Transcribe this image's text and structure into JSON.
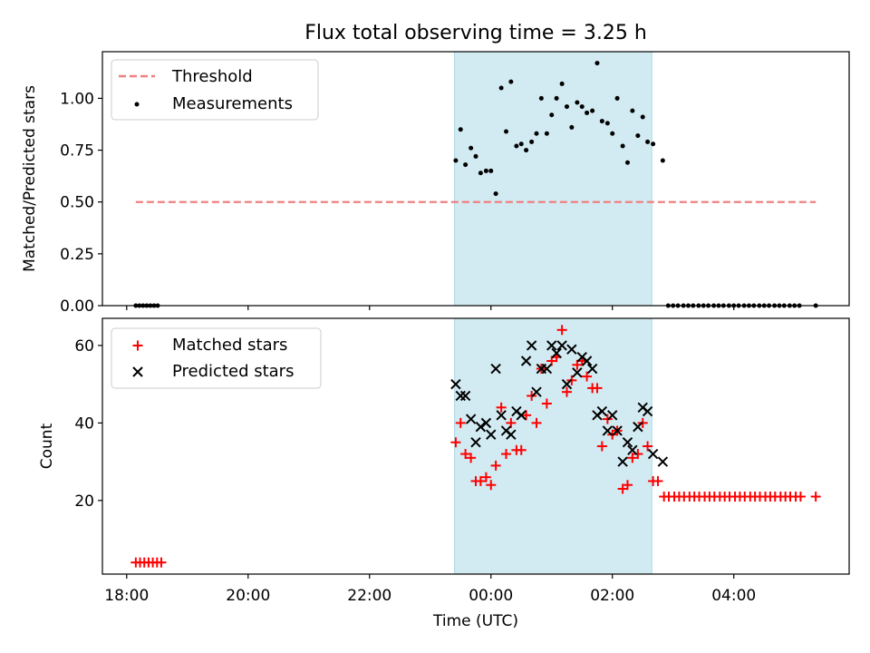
{
  "title": "Flux total observing time = 3.25 h",
  "colors": {
    "threshold": "#f08080",
    "measurement": "#000000",
    "matched": "#ff0000",
    "predicted": "#000000",
    "observing_window": "#add8e6"
  },
  "chart_data": [
    {
      "type": "scatter",
      "panel": "top",
      "ylabel": "Matched/Predicted stars",
      "ylim": [
        0.0,
        1.225
      ],
      "yticks": [
        0.0,
        0.25,
        0.5,
        0.75,
        1.0
      ],
      "ytick_labels": [
        "0.00",
        "0.25",
        "0.50",
        "0.75",
        "1.00"
      ],
      "legend": {
        "location": "upper-left",
        "entries": [
          "Threshold",
          "Measurements"
        ]
      },
      "threshold": {
        "label": "Threshold",
        "value": 0.5,
        "x_range": [
          -5.85,
          5.35
        ]
      },
      "shaded_window_hours": [
        -0.6,
        2.65
      ],
      "series": [
        {
          "name": "Measurements",
          "points": [
            [
              -5.85,
              0
            ],
            [
              -5.79,
              0
            ],
            [
              -5.73,
              0
            ],
            [
              -5.67,
              0
            ],
            [
              -5.61,
              0
            ],
            [
              -5.55,
              0
            ],
            [
              -5.49,
              0
            ],
            [
              -0.58,
              0.7
            ],
            [
              -0.5,
              0.85
            ],
            [
              -0.42,
              0.68
            ],
            [
              -0.33,
              0.76
            ],
            [
              -0.25,
              0.72
            ],
            [
              -0.17,
              0.64
            ],
            [
              -0.08,
              0.65
            ],
            [
              0.0,
              0.65
            ],
            [
              0.08,
              0.54
            ],
            [
              0.17,
              1.05
            ],
            [
              0.25,
              0.84
            ],
            [
              0.33,
              1.08
            ],
            [
              0.42,
              0.77
            ],
            [
              0.5,
              0.78
            ],
            [
              0.58,
              0.75
            ],
            [
              0.67,
              0.79
            ],
            [
              0.75,
              0.83
            ],
            [
              0.83,
              1.0
            ],
            [
              0.92,
              0.83
            ],
            [
              1.0,
              0.92
            ],
            [
              1.08,
              1.0
            ],
            [
              1.17,
              1.07
            ],
            [
              1.25,
              0.96
            ],
            [
              1.33,
              0.86
            ],
            [
              1.42,
              0.98
            ],
            [
              1.5,
              0.96
            ],
            [
              1.58,
              0.93
            ],
            [
              1.67,
              0.94
            ],
            [
              1.75,
              1.17
            ],
            [
              1.83,
              0.89
            ],
            [
              1.92,
              0.88
            ],
            [
              2.0,
              0.83
            ],
            [
              2.08,
              1.0
            ],
            [
              2.17,
              0.77
            ],
            [
              2.25,
              0.69
            ],
            [
              2.33,
              0.94
            ],
            [
              2.42,
              0.82
            ],
            [
              2.5,
              0.91
            ],
            [
              2.58,
              0.79
            ],
            [
              2.67,
              0.78
            ],
            [
              2.83,
              0.7
            ],
            [
              2.92,
              0
            ],
            [
              3.0,
              0
            ],
            [
              3.08,
              0
            ],
            [
              3.17,
              0
            ],
            [
              3.25,
              0
            ],
            [
              3.33,
              0
            ],
            [
              3.42,
              0
            ],
            [
              3.5,
              0
            ],
            [
              3.58,
              0
            ],
            [
              3.67,
              0
            ],
            [
              3.75,
              0
            ],
            [
              3.83,
              0
            ],
            [
              3.92,
              0
            ],
            [
              4.0,
              0
            ],
            [
              4.08,
              0
            ],
            [
              4.17,
              0
            ],
            [
              4.25,
              0
            ],
            [
              4.33,
              0
            ],
            [
              4.42,
              0
            ],
            [
              4.5,
              0
            ],
            [
              4.58,
              0
            ],
            [
              4.67,
              0
            ],
            [
              4.75,
              0
            ],
            [
              4.83,
              0
            ],
            [
              4.92,
              0
            ],
            [
              5.0,
              0
            ],
            [
              5.08,
              0
            ],
            [
              5.35,
              0
            ]
          ]
        }
      ]
    },
    {
      "type": "scatter",
      "panel": "bottom",
      "xlabel": "Time (UTC)",
      "ylabel": "Count",
      "xlim": [
        -6.4,
        5.9
      ],
      "ylim": [
        1,
        67
      ],
      "yticks": [
        20,
        40,
        60
      ],
      "ytick_labels": [
        "20",
        "40",
        "60"
      ],
      "xticks": [
        -6,
        -4,
        -2,
        0,
        2,
        4
      ],
      "xtick_labels": [
        "18:00",
        "20:00",
        "22:00",
        "00:00",
        "02:00",
        "04:00"
      ],
      "legend": {
        "location": "upper-left",
        "entries": [
          "Matched stars",
          "Predicted stars"
        ]
      },
      "shaded_window_hours": [
        -0.6,
        2.65
      ],
      "series": [
        {
          "name": "Matched stars",
          "marker": "plus",
          "points": [
            [
              -5.85,
              4
            ],
            [
              -5.78,
              4
            ],
            [
              -5.71,
              4
            ],
            [
              -5.64,
              4
            ],
            [
              -5.57,
              4
            ],
            [
              -5.5,
              4
            ],
            [
              -5.43,
              4
            ],
            [
              -0.58,
              35
            ],
            [
              -0.5,
              40
            ],
            [
              -0.42,
              32
            ],
            [
              -0.33,
              31
            ],
            [
              -0.25,
              25
            ],
            [
              -0.17,
              25
            ],
            [
              -0.08,
              26
            ],
            [
              0.0,
              24
            ],
            [
              0.08,
              29
            ],
            [
              0.17,
              44
            ],
            [
              0.25,
              32
            ],
            [
              0.33,
              40
            ],
            [
              0.42,
              33
            ],
            [
              0.5,
              33
            ],
            [
              0.58,
              42
            ],
            [
              0.67,
              47
            ],
            [
              0.75,
              40
            ],
            [
              0.83,
              54
            ],
            [
              0.92,
              45
            ],
            [
              1.0,
              56
            ],
            [
              1.08,
              57
            ],
            [
              1.17,
              64
            ],
            [
              1.25,
              48
            ],
            [
              1.33,
              51
            ],
            [
              1.42,
              55
            ],
            [
              1.5,
              56
            ],
            [
              1.58,
              52
            ],
            [
              1.67,
              49
            ],
            [
              1.75,
              49
            ],
            [
              1.83,
              34
            ],
            [
              1.92,
              41
            ],
            [
              2.0,
              37
            ],
            [
              2.08,
              38
            ],
            [
              2.17,
              23
            ],
            [
              2.25,
              24
            ],
            [
              2.33,
              31
            ],
            [
              2.42,
              32
            ],
            [
              2.5,
              40
            ],
            [
              2.58,
              34
            ],
            [
              2.67,
              25
            ],
            [
              2.75,
              25
            ],
            [
              2.85,
              21
            ],
            [
              2.93,
              21
            ],
            [
              3.02,
              21
            ],
            [
              3.1,
              21
            ],
            [
              3.18,
              21
            ],
            [
              3.27,
              21
            ],
            [
              3.35,
              21
            ],
            [
              3.43,
              21
            ],
            [
              3.52,
              21
            ],
            [
              3.6,
              21
            ],
            [
              3.68,
              21
            ],
            [
              3.77,
              21
            ],
            [
              3.85,
              21
            ],
            [
              3.93,
              21
            ],
            [
              4.02,
              21
            ],
            [
              4.1,
              21
            ],
            [
              4.18,
              21
            ],
            [
              4.27,
              21
            ],
            [
              4.35,
              21
            ],
            [
              4.43,
              21
            ],
            [
              4.52,
              21
            ],
            [
              4.6,
              21
            ],
            [
              4.68,
              21
            ],
            [
              4.77,
              21
            ],
            [
              4.85,
              21
            ],
            [
              4.93,
              21
            ],
            [
              5.02,
              21
            ],
            [
              5.1,
              21
            ],
            [
              5.35,
              21
            ]
          ]
        },
        {
          "name": "Predicted stars",
          "marker": "x",
          "points": [
            [
              -0.58,
              50
            ],
            [
              -0.5,
              47
            ],
            [
              -0.42,
              47
            ],
            [
              -0.33,
              41
            ],
            [
              -0.25,
              35
            ],
            [
              -0.17,
              39
            ],
            [
              -0.08,
              40
            ],
            [
              0.0,
              37
            ],
            [
              0.08,
              54
            ],
            [
              0.17,
              42
            ],
            [
              0.25,
              38
            ],
            [
              0.33,
              37
            ],
            [
              0.42,
              43
            ],
            [
              0.5,
              42
            ],
            [
              0.58,
              56
            ],
            [
              0.67,
              60
            ],
            [
              0.75,
              48
            ],
            [
              0.83,
              54
            ],
            [
              0.92,
              54
            ],
            [
              1.0,
              60
            ],
            [
              1.08,
              58
            ],
            [
              1.17,
              60
            ],
            [
              1.25,
              50
            ],
            [
              1.33,
              59
            ],
            [
              1.42,
              53
            ],
            [
              1.5,
              57
            ],
            [
              1.58,
              56
            ],
            [
              1.67,
              54
            ],
            [
              1.75,
              42
            ],
            [
              1.83,
              43
            ],
            [
              1.92,
              38
            ],
            [
              2.0,
              42
            ],
            [
              2.08,
              38
            ],
            [
              2.17,
              30
            ],
            [
              2.25,
              35
            ],
            [
              2.33,
              33
            ],
            [
              2.42,
              39
            ],
            [
              2.5,
              44
            ],
            [
              2.58,
              43
            ],
            [
              2.67,
              32
            ],
            [
              2.83,
              30
            ]
          ]
        }
      ]
    }
  ]
}
